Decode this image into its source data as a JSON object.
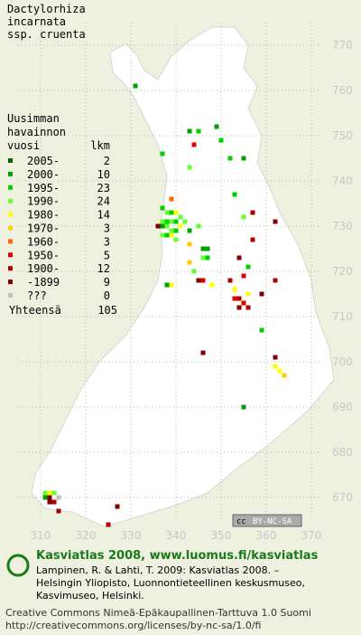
{
  "title_lines": [
    "Dactylorhiza",
    "incarnata",
    "ssp. cruenta"
  ],
  "legend": {
    "heading": [
      "Uusimman",
      "havainnon"
    ],
    "col_period": "vuosi",
    "col_count": "lkm",
    "rows": [
      {
        "label": "2005-",
        "count": 2,
        "color": "#006400"
      },
      {
        "label": "2000-",
        "count": 10,
        "color": "#00a000"
      },
      {
        "label": "1995-",
        "count": 23,
        "color": "#00d000"
      },
      {
        "label": "1990-",
        "count": 24,
        "color": "#66ff33"
      },
      {
        "label": "1980-",
        "count": 14,
        "color": "#ffff00"
      },
      {
        "label": "1970-",
        "count": 3,
        "color": "#ffcc00"
      },
      {
        "label": "1960-",
        "count": 3,
        "color": "#ff6600"
      },
      {
        "label": "1950-",
        "count": 5,
        "color": "#dd0000"
      },
      {
        "label": "1900-",
        "count": 12,
        "color": "#b00000"
      },
      {
        "label": "-1899",
        "count": 9,
        "color": "#800000"
      },
      {
        "label": "???",
        "count": 0,
        "color": "#c0c0c0"
      }
    ],
    "total_label": "Yhteensä",
    "total": 105
  },
  "map": {
    "xlim": [
      305,
      372
    ],
    "ylim": [
      667,
      775
    ],
    "xticks": [
      310,
      320,
      330,
      340,
      350,
      360,
      370
    ],
    "yticks": [
      670,
      680,
      690,
      700,
      710,
      720,
      730,
      740,
      750,
      760,
      770
    ],
    "squares": [
      [
        331,
        761,
        1
      ],
      [
        343,
        751,
        1
      ],
      [
        345,
        751,
        2
      ],
      [
        344,
        748,
        7
      ],
      [
        349,
        752,
        1
      ],
      [
        350,
        749,
        2
      ],
      [
        352,
        745,
        2
      ],
      [
        355,
        745,
        1
      ],
      [
        337,
        746,
        2
      ],
      [
        343,
        743,
        3
      ],
      [
        339,
        736,
        6
      ],
      [
        337,
        734,
        2
      ],
      [
        338,
        733,
        3
      ],
      [
        339,
        733,
        2
      ],
      [
        340,
        733,
        4
      ],
      [
        341,
        732,
        3
      ],
      [
        337,
        731,
        3
      ],
      [
        338,
        731,
        2
      ],
      [
        339,
        731,
        3
      ],
      [
        340,
        731,
        2
      ],
      [
        336,
        730,
        9
      ],
      [
        337,
        730,
        1
      ],
      [
        338,
        730,
        3
      ],
      [
        339,
        729,
        3
      ],
      [
        340,
        729,
        2
      ],
      [
        341,
        730,
        4
      ],
      [
        342,
        731,
        3
      ],
      [
        337,
        728,
        3
      ],
      [
        338,
        728,
        2
      ],
      [
        339,
        728,
        4
      ],
      [
        340,
        727,
        3
      ],
      [
        343,
        729,
        1
      ],
      [
        345,
        730,
        3
      ],
      [
        353,
        737,
        2
      ],
      [
        355,
        732,
        3
      ],
      [
        357,
        733,
        8
      ],
      [
        362,
        731,
        9
      ],
      [
        357,
        727,
        8
      ],
      [
        343,
        726,
        5
      ],
      [
        346,
        725,
        1
      ],
      [
        347,
        725,
        1
      ],
      [
        346,
        723,
        3
      ],
      [
        347,
        723,
        2
      ],
      [
        343,
        722,
        5
      ],
      [
        344,
        720,
        3
      ],
      [
        354,
        723,
        9
      ],
      [
        356,
        721,
        2
      ],
      [
        355,
        719,
        7
      ],
      [
        338,
        717,
        1
      ],
      [
        339,
        717,
        4
      ],
      [
        345,
        718,
        9
      ],
      [
        346,
        718,
        7
      ],
      [
        348,
        717,
        4
      ],
      [
        352,
        718,
        8
      ],
      [
        353,
        716,
        4
      ],
      [
        353,
        714,
        7
      ],
      [
        354,
        714,
        8
      ],
      [
        355,
        713,
        7
      ],
      [
        354,
        712,
        9
      ],
      [
        356,
        712,
        8
      ],
      [
        356,
        715,
        4
      ],
      [
        359,
        715,
        9
      ],
      [
        362,
        718,
        8
      ],
      [
        359,
        707,
        2
      ],
      [
        346,
        702,
        9
      ],
      [
        362,
        701,
        9
      ],
      [
        362,
        699,
        4
      ],
      [
        363,
        698,
        4
      ],
      [
        364,
        697,
        5
      ],
      [
        355,
        690,
        1
      ],
      [
        311,
        671,
        3
      ],
      [
        312,
        671,
        4
      ],
      [
        313,
        671,
        3
      ],
      [
        311,
        670,
        1
      ],
      [
        312,
        670,
        9
      ],
      [
        313,
        669,
        8
      ],
      [
        314,
        670,
        10
      ],
      [
        312,
        669,
        9
      ],
      [
        314,
        667,
        8
      ],
      [
        327,
        668,
        9
      ],
      [
        325,
        664,
        8
      ]
    ]
  },
  "badge": [
    "cc",
    "BY-NC-SA"
  ],
  "footer": {
    "brand": "Kasviatlas 2008, www.luomus.fi/kasviatlas",
    "citation": [
      "Lampinen, R. & Lahti, T. 2009: Kasviatlas 2008. –",
      "Helsingin Yliopisto, Luonnontieteellinen keskusmuseo,",
      "Kasvimuseo, Helsinki."
    ],
    "license": [
      "Creative Commons Nimeä-Epäkaupallinen-Tarttuva 1.0 Suomi",
      "http://creativecommons.org/licenses/by-nc-sa/1.0/fi"
    ]
  }
}
